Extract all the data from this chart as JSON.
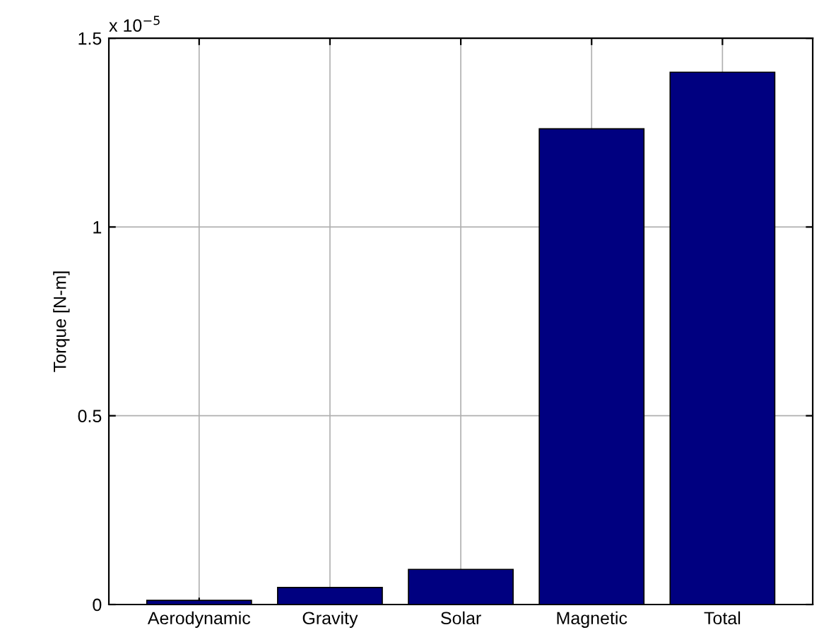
{
  "chart_data": {
    "type": "bar",
    "ylabel": "Torque [N-m]",
    "categories": [
      "Aerodynamic",
      "Gravity",
      "Solar",
      "Magnetic",
      "Total"
    ],
    "values": [
      0.011,
      0.045,
      0.093,
      1.26,
      1.41
    ],
    "color": "#000080",
    "ylim": [
      0,
      1.5
    ],
    "yticks": [
      0,
      0.5,
      1,
      1.5
    ],
    "grid": true,
    "annotations": [
      "x 10$^{−5}$"
    ]
  }
}
